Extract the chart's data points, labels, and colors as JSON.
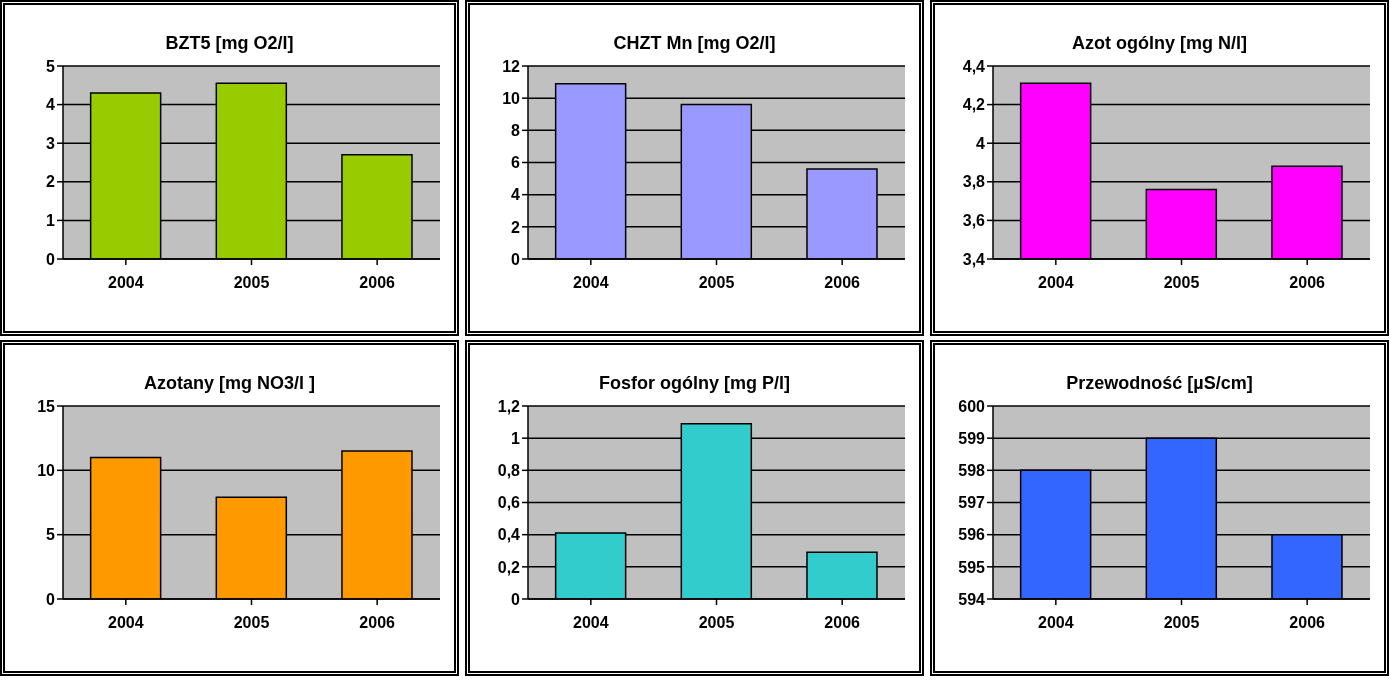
{
  "chart_data": [
    {
      "type": "bar",
      "title": "BZT5 [mg O2/l]",
      "categories": [
        "2004",
        "2005",
        "2006"
      ],
      "values": [
        4.3,
        4.55,
        2.7
      ],
      "color": "#99cc00",
      "ylim": [
        0,
        5
      ],
      "yticks": [
        0,
        1,
        2,
        3,
        4,
        5
      ],
      "grid": "y"
    },
    {
      "type": "bar",
      "title": "CHZT Mn [mg O2/l]",
      "categories": [
        "2004",
        "2005",
        "2006"
      ],
      "values": [
        10.9,
        9.6,
        5.6
      ],
      "color": "#9999ff",
      "ylim": [
        0,
        12
      ],
      "yticks": [
        0,
        2,
        4,
        6,
        8,
        10,
        12
      ],
      "grid": "y"
    },
    {
      "type": "bar",
      "title": "Azot ogólny [mg N/l]",
      "categories": [
        "2004",
        "2005",
        "2006"
      ],
      "values": [
        4.31,
        3.76,
        3.88
      ],
      "color": "#ff00ff",
      "ylim": [
        3.4,
        4.4
      ],
      "yticks": [
        {
          "value": 3.4,
          "label": "3,4"
        },
        {
          "value": 3.6,
          "label": "3,6"
        },
        {
          "value": 3.8,
          "label": "3,8"
        },
        4,
        {
          "value": 4.2,
          "label": "4,2"
        },
        {
          "value": 4.4,
          "label": "4,4"
        }
      ],
      "grid": "y"
    },
    {
      "type": "bar",
      "title": "Azotany [mg NO3/l ]",
      "categories": [
        "2004",
        "2005",
        "2006"
      ],
      "values": [
        11,
        7.9,
        11.5
      ],
      "color": "#ff9900",
      "ylim": [
        0,
        15
      ],
      "yticks": [
        0,
        5,
        10,
        15
      ],
      "grid": "y"
    },
    {
      "type": "bar",
      "title": "Fosfor ogólny [mg P/l]",
      "categories": [
        "2004",
        "2005",
        "2006"
      ],
      "values": [
        0.41,
        1.09,
        0.29
      ],
      "color": "#33cccc",
      "ylim": [
        0,
        1.2
      ],
      "yticks": [
        0,
        {
          "value": 0.2,
          "label": "0,2"
        },
        {
          "value": 0.4,
          "label": "0,4"
        },
        {
          "value": 0.6,
          "label": "0,6"
        },
        {
          "value": 0.8,
          "label": "0,8"
        },
        1,
        {
          "value": 1.2,
          "label": "1,2"
        }
      ],
      "grid": "y"
    },
    {
      "type": "bar",
      "title": "Przewodność [µS/cm]",
      "categories": [
        "2004",
        "2005",
        "2006"
      ],
      "values": [
        598,
        599,
        596
      ],
      "color": "#3366ff",
      "ylim": [
        594,
        600
      ],
      "yticks": [
        594,
        595,
        596,
        597,
        598,
        599,
        600
      ],
      "grid": "y"
    }
  ]
}
